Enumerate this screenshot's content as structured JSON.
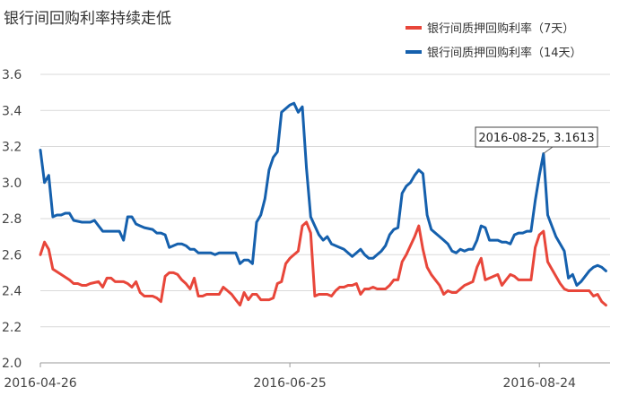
{
  "chart_data": {
    "type": "line",
    "title": "银行间回购利率持续走低",
    "xlabel": "",
    "ylabel": "",
    "ylim": [
      2.0,
      3.6
    ],
    "yticks": [
      "2.0",
      "2.2",
      "2.4",
      "2.6",
      "2.8",
      "3.0",
      "3.2",
      "3.4",
      "3.6"
    ],
    "xticks": [
      {
        "label": "2016-04-26",
        "x": 0
      },
      {
        "label": "2016-06-25",
        "x": 60
      },
      {
        "label": "2016-08-24",
        "x": 120
      }
    ],
    "xlim": [
      0,
      137
    ],
    "grid": "horizontal",
    "legend_position": "top-right",
    "series": [
      {
        "name": "银行间质押回购利率（7天）",
        "color": "#e8463a",
        "points": [
          [
            0,
            2.6
          ],
          [
            1,
            2.67
          ],
          [
            2,
            2.63
          ],
          [
            3,
            2.52
          ],
          [
            5,
            2.49
          ],
          [
            7,
            2.46
          ],
          [
            8,
            2.44
          ],
          [
            9,
            2.44
          ],
          [
            10,
            2.43
          ],
          [
            11,
            2.43
          ],
          [
            12,
            2.44
          ],
          [
            14,
            2.45
          ],
          [
            15,
            2.42
          ],
          [
            16,
            2.47
          ],
          [
            17,
            2.47
          ],
          [
            18,
            2.45
          ],
          [
            20,
            2.45
          ],
          [
            21,
            2.44
          ],
          [
            22,
            2.42
          ],
          [
            23,
            2.45
          ],
          [
            24,
            2.39
          ],
          [
            25,
            2.37
          ],
          [
            26,
            2.37
          ],
          [
            27,
            2.37
          ],
          [
            28,
            2.36
          ],
          [
            29,
            2.34
          ],
          [
            30,
            2.48
          ],
          [
            31,
            2.5
          ],
          [
            32,
            2.5
          ],
          [
            33,
            2.49
          ],
          [
            34,
            2.46
          ],
          [
            35,
            2.44
          ],
          [
            36,
            2.41
          ],
          [
            37,
            2.47
          ],
          [
            38,
            2.37
          ],
          [
            39,
            2.37
          ],
          [
            40,
            2.38
          ],
          [
            42,
            2.38
          ],
          [
            43,
            2.38
          ],
          [
            44,
            2.42
          ],
          [
            45,
            2.4
          ],
          [
            46,
            2.38
          ],
          [
            47,
            2.35
          ],
          [
            48,
            2.32
          ],
          [
            49,
            2.39
          ],
          [
            50,
            2.35
          ],
          [
            51,
            2.38
          ],
          [
            52,
            2.38
          ],
          [
            53,
            2.35
          ],
          [
            54,
            2.35
          ],
          [
            55,
            2.35
          ],
          [
            56,
            2.36
          ],
          [
            57,
            2.44
          ],
          [
            58,
            2.45
          ],
          [
            59,
            2.55
          ],
          [
            60,
            2.58
          ],
          [
            61,
            2.6
          ],
          [
            62,
            2.62
          ],
          [
            63,
            2.76
          ],
          [
            64,
            2.78
          ],
          [
            65,
            2.72
          ],
          [
            66,
            2.37
          ],
          [
            67,
            2.38
          ],
          [
            68,
            2.38
          ],
          [
            69,
            2.38
          ],
          [
            70,
            2.37
          ],
          [
            71,
            2.4
          ],
          [
            72,
            2.42
          ],
          [
            73,
            2.42
          ],
          [
            74,
            2.43
          ],
          [
            75,
            2.43
          ],
          [
            76,
            2.44
          ],
          [
            77,
            2.38
          ],
          [
            78,
            2.41
          ],
          [
            79,
            2.41
          ],
          [
            80,
            2.42
          ],
          [
            81,
            2.41
          ],
          [
            82,
            2.41
          ],
          [
            83,
            2.41
          ],
          [
            84,
            2.43
          ],
          [
            85,
            2.46
          ],
          [
            86,
            2.46
          ],
          [
            87,
            2.56
          ],
          [
            88,
            2.6
          ],
          [
            89,
            2.65
          ],
          [
            90,
            2.7
          ],
          [
            91,
            2.76
          ],
          [
            92,
            2.63
          ],
          [
            93,
            2.53
          ],
          [
            94,
            2.49
          ],
          [
            95,
            2.46
          ],
          [
            96,
            2.43
          ],
          [
            97,
            2.38
          ],
          [
            98,
            2.4
          ],
          [
            99,
            2.39
          ],
          [
            100,
            2.39
          ],
          [
            101,
            2.41
          ],
          [
            102,
            2.43
          ],
          [
            103,
            2.44
          ],
          [
            104,
            2.45
          ],
          [
            105,
            2.53
          ],
          [
            106,
            2.58
          ],
          [
            107,
            2.46
          ],
          [
            108,
            2.47
          ],
          [
            109,
            2.48
          ],
          [
            110,
            2.49
          ],
          [
            111,
            2.43
          ],
          [
            112,
            2.46
          ],
          [
            113,
            2.49
          ],
          [
            114,
            2.48
          ],
          [
            115,
            2.46
          ],
          [
            116,
            2.46
          ],
          [
            117,
            2.46
          ],
          [
            118,
            2.46
          ],
          [
            119,
            2.64
          ],
          [
            120,
            2.71
          ],
          [
            121,
            2.73
          ],
          [
            122,
            2.56
          ],
          [
            123,
            2.52
          ],
          [
            124,
            2.48
          ],
          [
            125,
            2.44
          ],
          [
            126,
            2.41
          ],
          [
            127,
            2.4
          ],
          [
            128,
            2.4
          ],
          [
            129,
            2.4
          ],
          [
            131,
            2.4
          ],
          [
            132,
            2.4
          ],
          [
            133,
            2.37
          ],
          [
            134,
            2.38
          ],
          [
            135,
            2.34
          ],
          [
            136,
            2.32
          ]
        ]
      },
      {
        "name": "银行间质押回购利率（14天）",
        "color": "#1560ad",
        "points": [
          [
            0,
            3.18
          ],
          [
            1,
            3.0
          ],
          [
            2,
            3.04
          ],
          [
            3,
            2.81
          ],
          [
            4,
            2.82
          ],
          [
            5,
            2.82
          ],
          [
            6,
            2.83
          ],
          [
            7,
            2.83
          ],
          [
            8,
            2.79
          ],
          [
            10,
            2.78
          ],
          [
            12,
            2.78
          ],
          [
            13,
            2.79
          ],
          [
            14,
            2.76
          ],
          [
            15,
            2.73
          ],
          [
            16,
            2.73
          ],
          [
            17,
            2.73
          ],
          [
            18,
            2.73
          ],
          [
            19,
            2.73
          ],
          [
            20,
            2.68
          ],
          [
            21,
            2.81
          ],
          [
            22,
            2.81
          ],
          [
            23,
            2.77
          ],
          [
            24,
            2.76
          ],
          [
            25,
            2.75
          ],
          [
            27,
            2.74
          ],
          [
            28,
            2.72
          ],
          [
            29,
            2.72
          ],
          [
            30,
            2.71
          ],
          [
            31,
            2.64
          ],
          [
            32,
            2.65
          ],
          [
            33,
            2.66
          ],
          [
            34,
            2.66
          ],
          [
            35,
            2.65
          ],
          [
            36,
            2.63
          ],
          [
            37,
            2.63
          ],
          [
            38,
            2.61
          ],
          [
            39,
            2.61
          ],
          [
            40,
            2.61
          ],
          [
            41,
            2.61
          ],
          [
            42,
            2.6
          ],
          [
            43,
            2.61
          ],
          [
            45,
            2.61
          ],
          [
            46,
            2.61
          ],
          [
            47,
            2.61
          ],
          [
            48,
            2.55
          ],
          [
            49,
            2.57
          ],
          [
            50,
            2.57
          ],
          [
            51,
            2.55
          ],
          [
            52,
            2.78
          ],
          [
            53,
            2.82
          ],
          [
            54,
            2.91
          ],
          [
            55,
            3.07
          ],
          [
            56,
            3.14
          ],
          [
            57,
            3.17
          ],
          [
            58,
            3.39
          ],
          [
            60,
            3.43
          ],
          [
            61,
            3.44
          ],
          [
            62,
            3.39
          ],
          [
            63,
            3.42
          ],
          [
            64,
            3.08
          ],
          [
            65,
            2.81
          ],
          [
            66,
            2.76
          ],
          [
            67,
            2.71
          ],
          [
            68,
            2.68
          ],
          [
            69,
            2.7
          ],
          [
            70,
            2.66
          ],
          [
            71,
            2.65
          ],
          [
            72,
            2.64
          ],
          [
            73,
            2.63
          ],
          [
            74,
            2.61
          ],
          [
            75,
            2.59
          ],
          [
            76,
            2.61
          ],
          [
            77,
            2.63
          ],
          [
            78,
            2.6
          ],
          [
            79,
            2.58
          ],
          [
            80,
            2.58
          ],
          [
            81,
            2.6
          ],
          [
            82,
            2.62
          ],
          [
            83,
            2.65
          ],
          [
            84,
            2.71
          ],
          [
            85,
            2.74
          ],
          [
            86,
            2.75
          ],
          [
            87,
            2.94
          ],
          [
            88,
            2.98
          ],
          [
            89,
            3.0
          ],
          [
            90,
            3.04
          ],
          [
            91,
            3.07
          ],
          [
            92,
            3.05
          ],
          [
            93,
            2.82
          ],
          [
            94,
            2.74
          ],
          [
            95,
            2.72
          ],
          [
            96,
            2.7
          ],
          [
            97,
            2.68
          ],
          [
            98,
            2.66
          ],
          [
            99,
            2.62
          ],
          [
            100,
            2.61
          ],
          [
            101,
            2.63
          ],
          [
            102,
            2.62
          ],
          [
            103,
            2.63
          ],
          [
            104,
            2.63
          ],
          [
            105,
            2.68
          ],
          [
            106,
            2.76
          ],
          [
            107,
            2.75
          ],
          [
            108,
            2.68
          ],
          [
            109,
            2.68
          ],
          [
            110,
            2.68
          ],
          [
            111,
            2.67
          ],
          [
            112,
            2.67
          ],
          [
            113,
            2.66
          ],
          [
            114,
            2.71
          ],
          [
            115,
            2.72
          ],
          [
            116,
            2.72
          ],
          [
            117,
            2.73
          ],
          [
            118,
            2.73
          ],
          [
            119,
            2.9
          ],
          [
            120,
            3.04
          ],
          [
            121,
            3.16
          ],
          [
            122,
            2.82
          ],
          [
            123,
            2.76
          ],
          [
            124,
            2.7
          ],
          [
            125,
            2.66
          ],
          [
            126,
            2.62
          ],
          [
            127,
            2.47
          ],
          [
            128,
            2.49
          ],
          [
            129,
            2.43
          ],
          [
            130,
            2.45
          ],
          [
            131,
            2.48
          ],
          [
            132,
            2.51
          ],
          [
            133,
            2.53
          ],
          [
            134,
            2.54
          ],
          [
            135,
            2.53
          ],
          [
            136,
            2.51
          ]
        ]
      }
    ],
    "annotations": [
      {
        "text": "2016-08-25, 3.1613",
        "x": 121,
        "y": 3.1613
      }
    ]
  }
}
